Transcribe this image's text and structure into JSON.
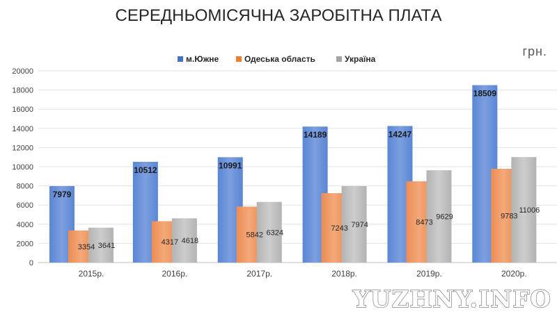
{
  "chart_data": {
    "type": "bar",
    "title": "СЕРЕДНЬОМІСЯЧНА ЗАРОБІТНА ПЛАТА",
    "unit": "грн.",
    "categories": [
      "2015р.",
      "2016р.",
      "2017р.",
      "2018р.",
      "2019р.",
      "2020р."
    ],
    "series": [
      {
        "name": "м.Южне",
        "color": "#4472c4",
        "values": [
          7979,
          10512,
          10991,
          14189,
          14247,
          18509
        ]
      },
      {
        "name": "Одеська область",
        "color": "#ed7d31",
        "values": [
          3354,
          4317,
          5842,
          7243,
          8473,
          9783
        ]
      },
      {
        "name": "Україна",
        "color": "#a5a5a5",
        "values": [
          3641,
          4618,
          6324,
          7974,
          9629,
          11006
        ]
      }
    ],
    "ylim": [
      0,
      20000
    ],
    "yticks": [
      "0",
      "2000",
      "4000",
      "6000",
      "8000",
      "10000",
      "12000",
      "14000",
      "16000",
      "18000",
      "20000"
    ],
    "xlabel": "",
    "ylabel": "",
    "grid": true,
    "legend_position": "top"
  },
  "watermark": "YUZHNY.INFO"
}
